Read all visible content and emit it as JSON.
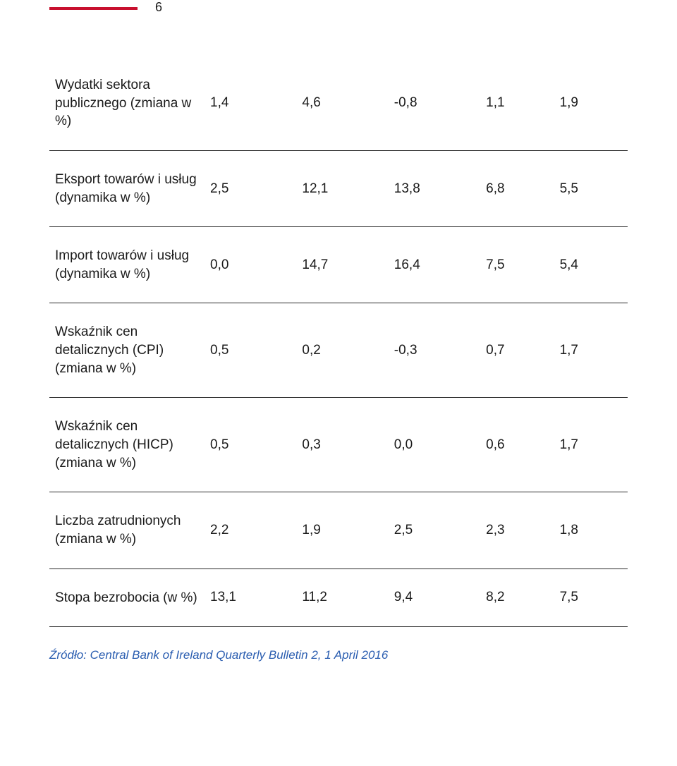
{
  "page_number": "6",
  "accent_color": "#c8102e",
  "table": {
    "rows": [
      {
        "label": "Wydatki sektora publicznego (zmiana w %)",
        "cells": [
          "1,4",
          "4,6",
          "-0,8",
          "1,1",
          "1,9"
        ]
      },
      {
        "label": "Eksport towarów i usług (dynamika w %)",
        "cells": [
          "2,5",
          "12,1",
          "13,8",
          "6,8",
          "5,5"
        ]
      },
      {
        "label": "Import towarów i usług (dynamika w %)",
        "cells": [
          "0,0",
          "14,7",
          "16,4",
          "7,5",
          "5,4"
        ]
      },
      {
        "label": "Wskaźnik cen detalicznych (CPI) (zmiana w %)",
        "cells": [
          "0,5",
          "0,2",
          "-0,3",
          "0,7",
          "1,7"
        ]
      },
      {
        "label": "Wskaźnik cen detalicznych (HICP) (zmiana w %)",
        "cells": [
          "0,5",
          "0,3",
          "0,0",
          "0,6",
          "1,7"
        ]
      },
      {
        "label": "Liczba zatrudnionych (zmiana w %)",
        "cells": [
          "2,2",
          "1,9",
          "2,5",
          "2,3",
          "1,8"
        ]
      },
      {
        "label": "Stopa bezrobocia (w %)",
        "cells": [
          "13,1",
          "11,2",
          "9,4",
          "8,2",
          "7,5"
        ]
      }
    ]
  },
  "source": "Źródło: Central Bank of Ireland Quarterly Bulletin 2, 1 April 2016"
}
